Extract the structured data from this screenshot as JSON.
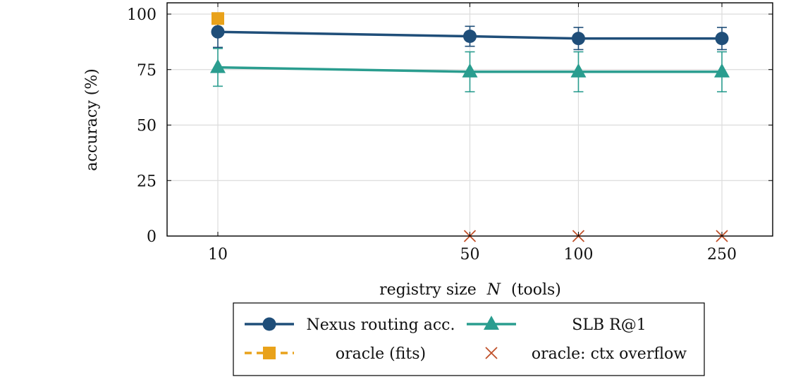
{
  "chart_data": {
    "type": "line",
    "xlabel": "registry size",
    "xlabel_var": "N",
    "xlabel_suffix": "(tools)",
    "ylabel": "accuracy (%)",
    "x_ticks": [
      10,
      50,
      100,
      250
    ],
    "y_ticks": [
      0,
      25,
      50,
      75,
      100
    ],
    "ylim": [
      0,
      100
    ],
    "grid": true,
    "legend_position": "bottom-center",
    "series": [
      {
        "name": "Nexus routing acc.",
        "color": "#1f4e79",
        "marker": "circle",
        "style": "solid",
        "x": [
          10,
          50,
          100,
          250
        ],
        "y": [
          92,
          90,
          89,
          89
        ],
        "err": [
          7,
          4.5,
          5,
          5
        ]
      },
      {
        "name": "SLB R@1",
        "color": "#2a9d8f",
        "marker": "triangle",
        "style": "solid",
        "x": [
          10,
          50,
          100,
          250
        ],
        "y": [
          76,
          74,
          74,
          74
        ],
        "err": [
          8.5,
          9,
          9,
          9
        ]
      },
      {
        "name": "oracle (fits)",
        "color": "#e9a21a",
        "marker": "square",
        "style": "dashed",
        "x": [
          10
        ],
        "y": [
          98
        ],
        "err": [
          1.5
        ]
      },
      {
        "name": "oracle: ctx overflow",
        "color": "#c0502a",
        "marker": "cross",
        "style": "none",
        "x": [
          50,
          100,
          250
        ],
        "y": [
          0,
          0,
          0
        ],
        "err": []
      }
    ]
  }
}
